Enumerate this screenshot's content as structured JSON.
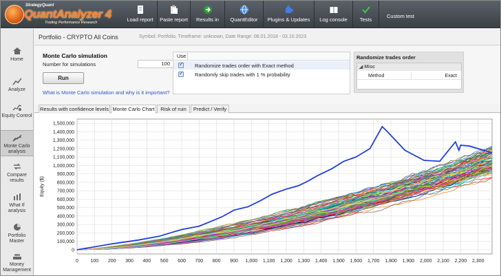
{
  "app": {
    "brand_small": "StrategyQuant",
    "brand": "QuantAnalyzer 4",
    "tagline": "Trading Performance Research"
  },
  "toolbar": [
    {
      "label": "Load report",
      "icon": "load-report-icon"
    },
    {
      "label": "Paste report",
      "icon": "paste-report-icon"
    },
    {
      "label": "Results in",
      "icon": "results-in-icon"
    },
    {
      "label": "QuantEditor",
      "icon": "globe-icon"
    },
    {
      "label": "Plugins & Updates",
      "icon": "puzzle-icon"
    },
    {
      "label": "Log console",
      "icon": "book-icon"
    },
    {
      "label": "Tests",
      "icon": "check-icon"
    },
    {
      "label": "Custom test",
      "icon": ""
    }
  ],
  "sidebar": [
    {
      "label": "Home",
      "icon": "home-icon"
    },
    {
      "label": "Analyze",
      "icon": "analyze-icon"
    },
    {
      "label": "Equity Control",
      "icon": "equity-control-icon"
    },
    {
      "label": "Monte Carlo analysis",
      "icon": "monte-carlo-icon",
      "active": true
    },
    {
      "label": "Compare results",
      "icon": "compare-icon"
    },
    {
      "label": "What If analysis",
      "icon": "what-if-icon"
    },
    {
      "label": "Portfolio Master",
      "icon": "portfolio-icon"
    },
    {
      "label": "Money Management",
      "icon": "money-icon"
    }
  ],
  "header": {
    "title": "Portfolio - CRYPTO All Coins",
    "subtitle": "Symbol: Portfolio, Timeframe: unknown, Date Range: 08.01.2018 - 03.10.2023"
  },
  "mc": {
    "title": "Monte Carlo simulation",
    "num_label": "Number for simulations",
    "num_value": "100",
    "run_label": "Run",
    "link": "What is Monte Carlo simulation and why is it important?"
  },
  "options": {
    "header": "Use",
    "rows": [
      {
        "label": "Randomize trades order with Exact method",
        "checked": true
      },
      {
        "label": "Randomly skip trades with 1 % probability",
        "checked": true
      }
    ]
  },
  "randomize": {
    "title": "Randomize trades order",
    "group": "Misc",
    "key": "Method",
    "value": "Exact"
  },
  "tabs": [
    {
      "label": "Results with confidence levels",
      "active": false
    },
    {
      "label": "Monte Carlo Chart",
      "active": true
    },
    {
      "label": "Risk of ruin",
      "active": false
    },
    {
      "label": "Predict / Verify",
      "active": false
    }
  ],
  "chart_data": {
    "type": "line",
    "title": "",
    "xlabel": "",
    "ylabel": "Equity ($)",
    "xlim": [
      0,
      2380
    ],
    "ylim": [
      -50000,
      1550000
    ],
    "x_ticks": [
      "0",
      "100",
      "200",
      "300",
      "400",
      "500",
      "600",
      "700",
      "800",
      "900",
      "1,000",
      "1,100",
      "1,200",
      "1,300",
      "1,400",
      "1,500",
      "1,600",
      "1,700",
      "1,800",
      "1,900",
      "2,000",
      "2,100",
      "2,200",
      "2,300"
    ],
    "y_ticks": [
      "0",
      "100,000",
      "200,000",
      "300,000",
      "400,000",
      "500,000",
      "600,000",
      "700,000",
      "800,000",
      "900,000",
      "1,000,000",
      "1,100,000",
      "1,200,000",
      "1,300,000",
      "1,400,000",
      "1,500,000"
    ],
    "grid": true,
    "simulations": 100,
    "original": {
      "name": "",
      "color": "#1f3fd6",
      "x": [
        0,
        200,
        350,
        470,
        550,
        600,
        700,
        760,
        830,
        900,
        980,
        1050,
        1120,
        1200,
        1270,
        1320,
        1380,
        1460,
        1530,
        1600,
        1680,
        1750,
        1780,
        1880,
        1990,
        2080,
        2170,
        2190,
        2200,
        2250,
        2380
      ],
      "y": [
        0,
        70000,
        115000,
        160000,
        210000,
        240000,
        280000,
        330000,
        390000,
        470000,
        510000,
        580000,
        660000,
        720000,
        760000,
        810000,
        880000,
        960000,
        1050000,
        1100000,
        1200000,
        1460000,
        1400000,
        1180000,
        1060000,
        1050000,
        1280000,
        1180000,
        1240000,
        1230000,
        1150000
      ]
    },
    "band_final_min": 900000,
    "band_final_max": 1200000
  }
}
